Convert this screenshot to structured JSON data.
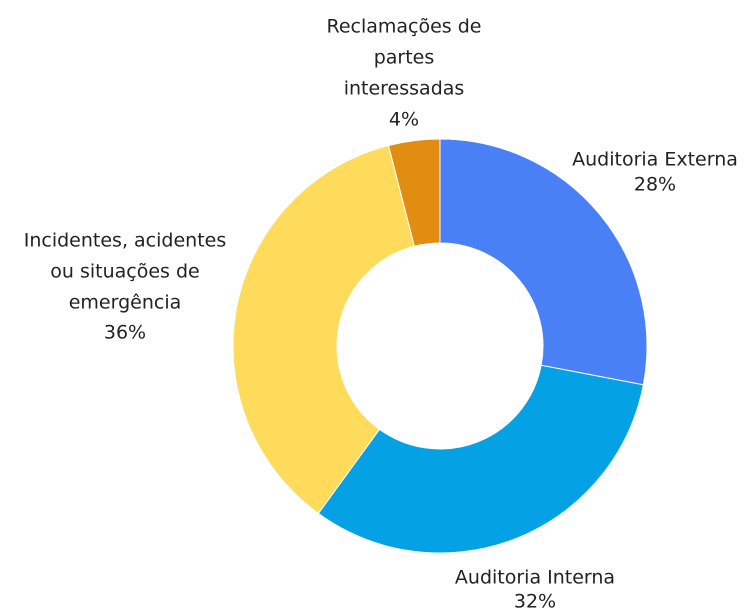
{
  "chart_data": {
    "type": "pie",
    "categories": [
      [
        "Auditoria Externa"
      ],
      [
        "Auditoria Interna"
      ],
      [
        "Incidentes, acidentes",
        "ou situações de",
        "emergência"
      ],
      [
        "Reclamações de",
        "partes",
        "interessadas"
      ]
    ],
    "values": [
      28,
      32,
      36,
      4
    ],
    "value_labels": [
      "28%",
      "32%",
      "36%",
      "4%"
    ],
    "colors": [
      "#4a80f6",
      "#05a1e5",
      "#fedb5b",
      "#e08d12"
    ],
    "donut": true
  }
}
